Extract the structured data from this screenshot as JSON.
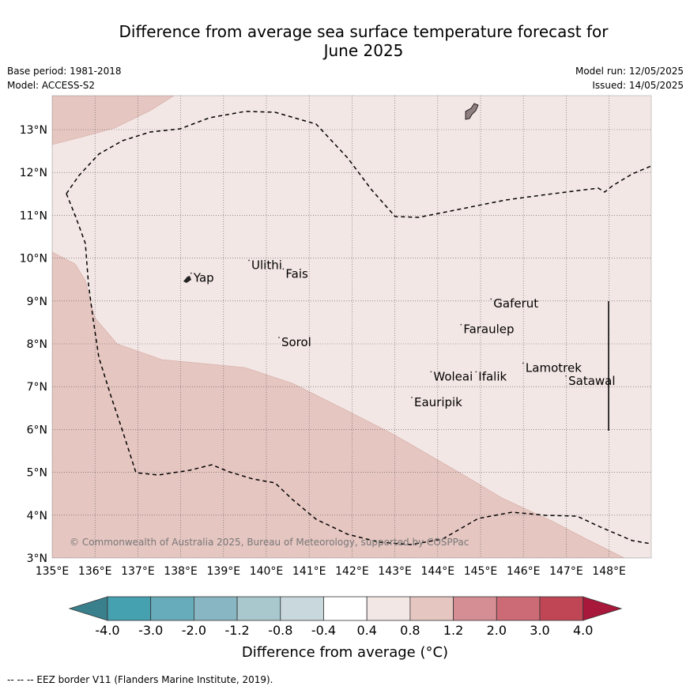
{
  "title_line1": "Difference from average sea surface temperature forecast for",
  "title_line2": "June 2025",
  "base_period": "Base period: 1981-2018",
  "model": "Model: ACCESS-S2",
  "model_run": "Model run: 12/05/2025",
  "issued": "Issued: 14/05/2025",
  "copyright": "© Commonwealth of Australia 2025, Bureau of Meteorology, supported by COSPPac",
  "lon_ticks": [
    "135°E",
    "136°E",
    "137°E",
    "138°E",
    "139°E",
    "140°E",
    "141°E",
    "142°E",
    "143°E",
    "144°E",
    "145°E",
    "146°E",
    "147°E",
    "148°E"
  ],
  "lat_ticks": [
    "3°N",
    "4°N",
    "5°N",
    "6°N",
    "7°N",
    "8°N",
    "9°N",
    "10°N",
    "11°N",
    "12°N",
    "13°N"
  ],
  "islands": [
    {
      "name": "Yap",
      "lon": 138.3,
      "lat": 9.5
    },
    {
      "name": "Ulithi",
      "lon": 139.65,
      "lat": 9.8
    },
    {
      "name": "Fais",
      "lon": 140.45,
      "lat": 9.6
    },
    {
      "name": "Gaferut",
      "lon": 145.3,
      "lat": 8.9
    },
    {
      "name": "Faraulep",
      "lon": 144.6,
      "lat": 8.3
    },
    {
      "name": "Sorol",
      "lon": 140.35,
      "lat": 8.0
    },
    {
      "name": "Woleai",
      "lon": 143.9,
      "lat": 7.2
    },
    {
      "name": "Ifalik",
      "lon": 144.95,
      "lat": 7.2
    },
    {
      "name": "Lamotrek",
      "lon": 146.05,
      "lat": 7.4
    },
    {
      "name": "Satawal",
      "lon": 147.05,
      "lat": 7.1
    },
    {
      "name": "Eauripik",
      "lon": 143.45,
      "lat": 6.6
    }
  ],
  "colorbar": {
    "title": "Difference from average (°C)",
    "labels": [
      "-4.0",
      "-3.0",
      "-2.0",
      "-1.2",
      "-0.8",
      "-0.4",
      "0.4",
      "0.8",
      "1.2",
      "2.0",
      "3.0",
      "4.0"
    ],
    "colors": [
      "#3a7f8c",
      "#45a0b0",
      "#67acba",
      "#88b6c2",
      "#a8c8ce",
      "#c8d8dc",
      "#ffffff",
      "#f3e7e5",
      "#e6c6c1",
      "#d68e95",
      "#cc6b75",
      "#c04656",
      "#a8183a"
    ]
  },
  "footnote": "--  --  -- EEZ border V11 (Flanders Marine Institute, 2019)."
}
